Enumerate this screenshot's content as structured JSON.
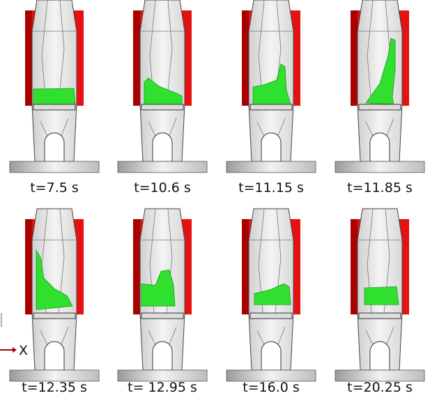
{
  "panels": [
    {
      "caption": "t=7.5 s"
    },
    {
      "caption": "t=10.6 s"
    },
    {
      "caption": "t=11.15 s"
    },
    {
      "caption": "t=11.85 s"
    },
    {
      "caption": "t=12.35 s"
    },
    {
      "caption": "t= 12.95 s"
    },
    {
      "caption": "t=16.0 s"
    },
    {
      "caption": "t=20.25 s"
    }
  ],
  "axis_label": "X"
}
